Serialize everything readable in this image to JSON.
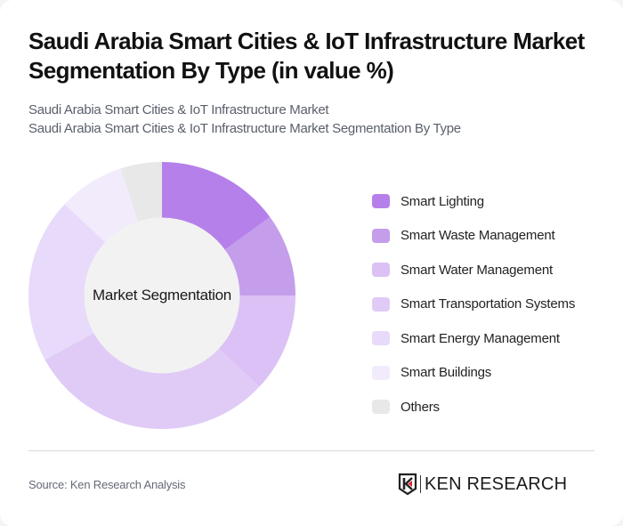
{
  "header": {
    "title_line1": "Saudi Arabia Smart Cities & IoT Infrastructure Market",
    "title_line2": "Segmentation By Type (in value %)",
    "subtitle_line1": "Saudi Arabia Smart Cities & IoT Infrastructure Market",
    "subtitle_line2": "Saudi Arabia Smart Cities & IoT Infrastructure Market Segmentation By Type"
  },
  "chart": {
    "center_label": "Market Segmentation"
  },
  "legend": {
    "items": [
      {
        "label": "Smart Lighting",
        "color": "#b580ea"
      },
      {
        "label": "Smart Waste Management",
        "color": "#c49deb"
      },
      {
        "label": "Smart Water Management",
        "color": "#dbc1f5"
      },
      {
        "label": "Smart Transportation Systems",
        "color": "#e0cbf7"
      },
      {
        "label": "Smart Energy Management",
        "color": "#e8dafa"
      },
      {
        "label": "Smart Buildings",
        "color": "#f2ebfc"
      },
      {
        "label": "Others",
        "color": "#e8e8e8"
      }
    ]
  },
  "footer": {
    "source": "Source: Ken Research Analysis",
    "logo_text": "KEN RESEARCH"
  },
  "chart_data": {
    "type": "pie",
    "subtype": "donut",
    "title": "Saudi Arabia Smart Cities & IoT Infrastructure Market Segmentation By Type (in value %)",
    "center_label": "Market Segmentation",
    "categories": [
      "Smart Lighting",
      "Smart Waste Management",
      "Smart Water Management",
      "Smart Transportation Systems",
      "Smart Energy Management",
      "Smart Buildings",
      "Others"
    ],
    "values": [
      15,
      10,
      12,
      30,
      20,
      8,
      5
    ],
    "colors": [
      "#b580ea",
      "#c49deb",
      "#dbc1f5",
      "#e0cbf7",
      "#e8dafa",
      "#f2ebfc",
      "#e8e8e8"
    ],
    "unit": "%",
    "start_angle": "12 o'clock, clockwise",
    "legend_position": "right"
  }
}
